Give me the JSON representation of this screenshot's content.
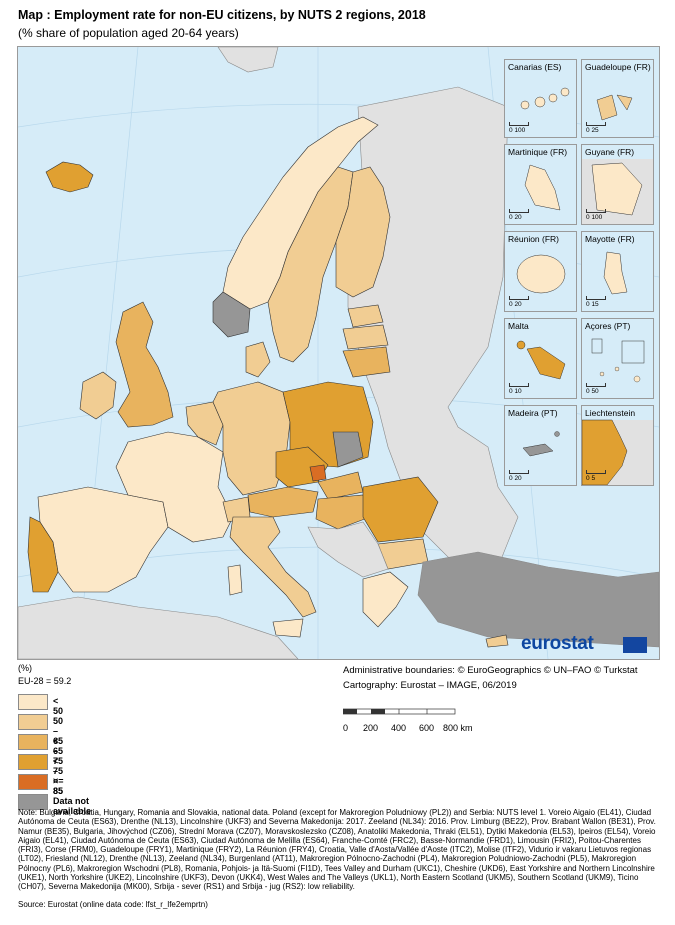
{
  "title": "Map : Employment rate for non-EU citizens, by NUTS 2 regions, 2018",
  "subtitle": "(% share of population aged 20-64 years)",
  "legend": {
    "unit": "(%)",
    "eu_average": "EU-28 = 59.2",
    "classes": [
      {
        "label": "< 50",
        "color": "#fce8c8"
      },
      {
        "label": "50 – < 65",
        "color": "#f1cd93"
      },
      {
        "label": "65 – < 75",
        "color": "#e8b35e"
      },
      {
        "label": "75 – < 85",
        "color": "#e0a031"
      },
      {
        "label": ">= 85",
        "color": "#d96d24"
      },
      {
        "label": "Data not available",
        "color": "#969696"
      }
    ]
  },
  "colors": {
    "sea": "#d6ecf8",
    "non_eu_land": "#e1e1e1",
    "border": "#333333"
  },
  "insets": [
    {
      "name": "Canarias (ES)",
      "scale": [
        "0",
        "100"
      ]
    },
    {
      "name": "Guadeloupe (FR)",
      "scale": [
        "0",
        "25"
      ]
    },
    {
      "name": "Martinique (FR)",
      "scale": [
        "0",
        "20"
      ]
    },
    {
      "name": "Guyane (FR)",
      "scale": [
        "0",
        "100"
      ]
    },
    {
      "name": "Réunion (FR)",
      "scale": [
        "0",
        "20"
      ]
    },
    {
      "name": "Mayotte (FR)",
      "scale": [
        "0",
        "15"
      ]
    },
    {
      "name": "Malta",
      "scale": [
        "0",
        "10"
      ]
    },
    {
      "name": "Açores (PT)",
      "scale": [
        "0",
        "50"
      ]
    },
    {
      "name": "Madeira (PT)",
      "scale": [
        "0",
        "20"
      ]
    },
    {
      "name": "Liechtenstein",
      "scale": [
        "0",
        "5"
      ]
    }
  ],
  "logo_text": "eurostat",
  "credits": {
    "boundaries": "Administrative boundaries: © EuroGeographics © UN–FAO © Turkstat",
    "cartography": "Cartography: Eurostat – IMAGE, 06/2019"
  },
  "scale_bar": {
    "ticks": [
      "0",
      "200",
      "400",
      "600",
      "800 km"
    ]
  },
  "note": "Note: Bulgaria, Croatia, Hungary, Romania and Slovakia, national data. Poland (except for Makroregion Poludniowy (PL2)) and Serbia: NUTS level 1. Voreio Aigaio (EL41), Ciudad Autónoma de Ceuta (ES63), Drenthe (NL13), Lincolnshire (UKF3) and Severna Makedonija: 2017. Zeeland (NL34): 2016. Prov. Limburg (BE22), Prov. Brabant Wallon (BE31), Prov. Namur (BE35), Bulgaria, Jihovýchod (CZ06), Strední Morava (CZ07), Moravskoslezsko (CZ08), Anatoliki Makedonia, Thraki (EL51), Dytiki Makedonia (EL53), Ipeiros (EL54), Voreio Aigaio (EL41), Ciudad Autónoma de Ceuta (ES63), Ciudad Autónoma de Melilla (ES64), Franche-Comté (FRC2), Basse-Normandie (FRD1), Limousin (FRI2), Poitou-Charentes (FRI3), Corse (FRM0), Guadeloupe (FRY1), Martinique (FRY2), La Réunion (FRY4), Croatia, Valle d'Aosta/Vallée d'Aoste (ITC2), Molise (ITF2), Vidurio ir vakaru Lietuvos regionas (LT02), Friesland (NL12), Drenthe (NL13), Zeeland (NL34), Burgenland (AT11), Makroregion Pólnocno-Zachodni (PL4), Makroregion Poludniowo-Zachodni (PL5), Makroregion Pólnocny (PL6), Makroregion Wschodni (PL8), Romania, Pohjois- ja Itä-Suomi (FI1D), Tees Valley and Durham (UKC1), Cheshire (UKD6), East Yorkshire and Northern Lincolnshire (UKE1), North Yorkshire (UKE2), Lincolnshire (UKF3), Devon (UKK4), West Wales and The Valleys (UKL1), North Eastern Scotland (UKM5), Southern Scotland (UKM9), Ticino (CH07), Severna Makedonija (MK00), Srbija - sever (RS1) and Srbija - jug (RS2): low reliability.",
  "source": "Source: Eurostat (online data code: lfst_r_lfe2emprtn)"
}
